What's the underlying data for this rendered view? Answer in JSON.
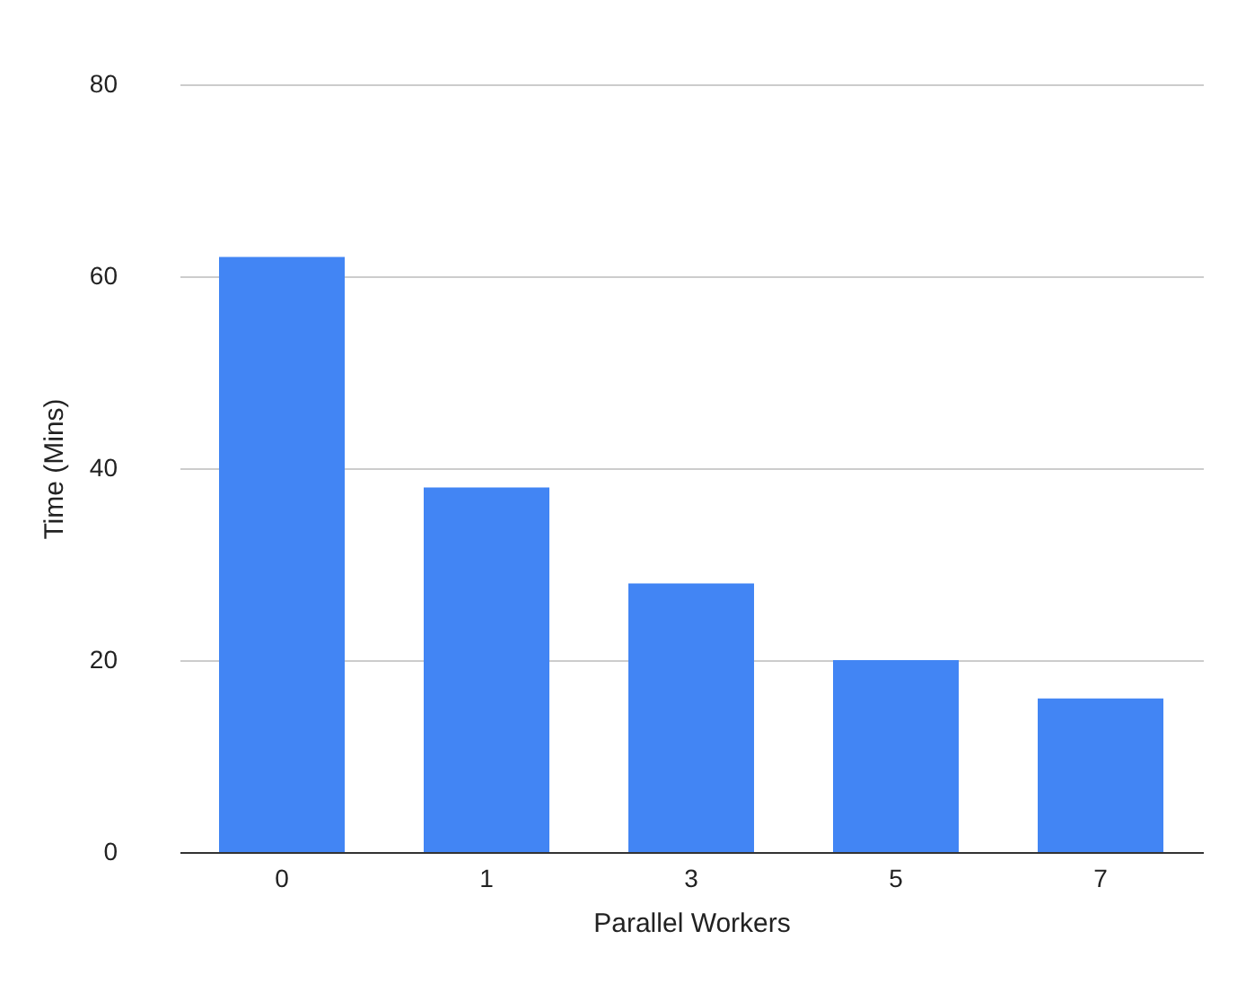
{
  "chart_data": {
    "type": "bar",
    "xlabel": "Parallel Workers",
    "ylabel": "Time (Mins)",
    "categories": [
      "0",
      "1",
      "3",
      "5",
      "7"
    ],
    "values": [
      62,
      38,
      28,
      20,
      16
    ],
    "color": "#4285f4",
    "ylim": [
      0,
      80
    ],
    "yticks": [
      0,
      20,
      40,
      60,
      80
    ],
    "grid": "y"
  }
}
